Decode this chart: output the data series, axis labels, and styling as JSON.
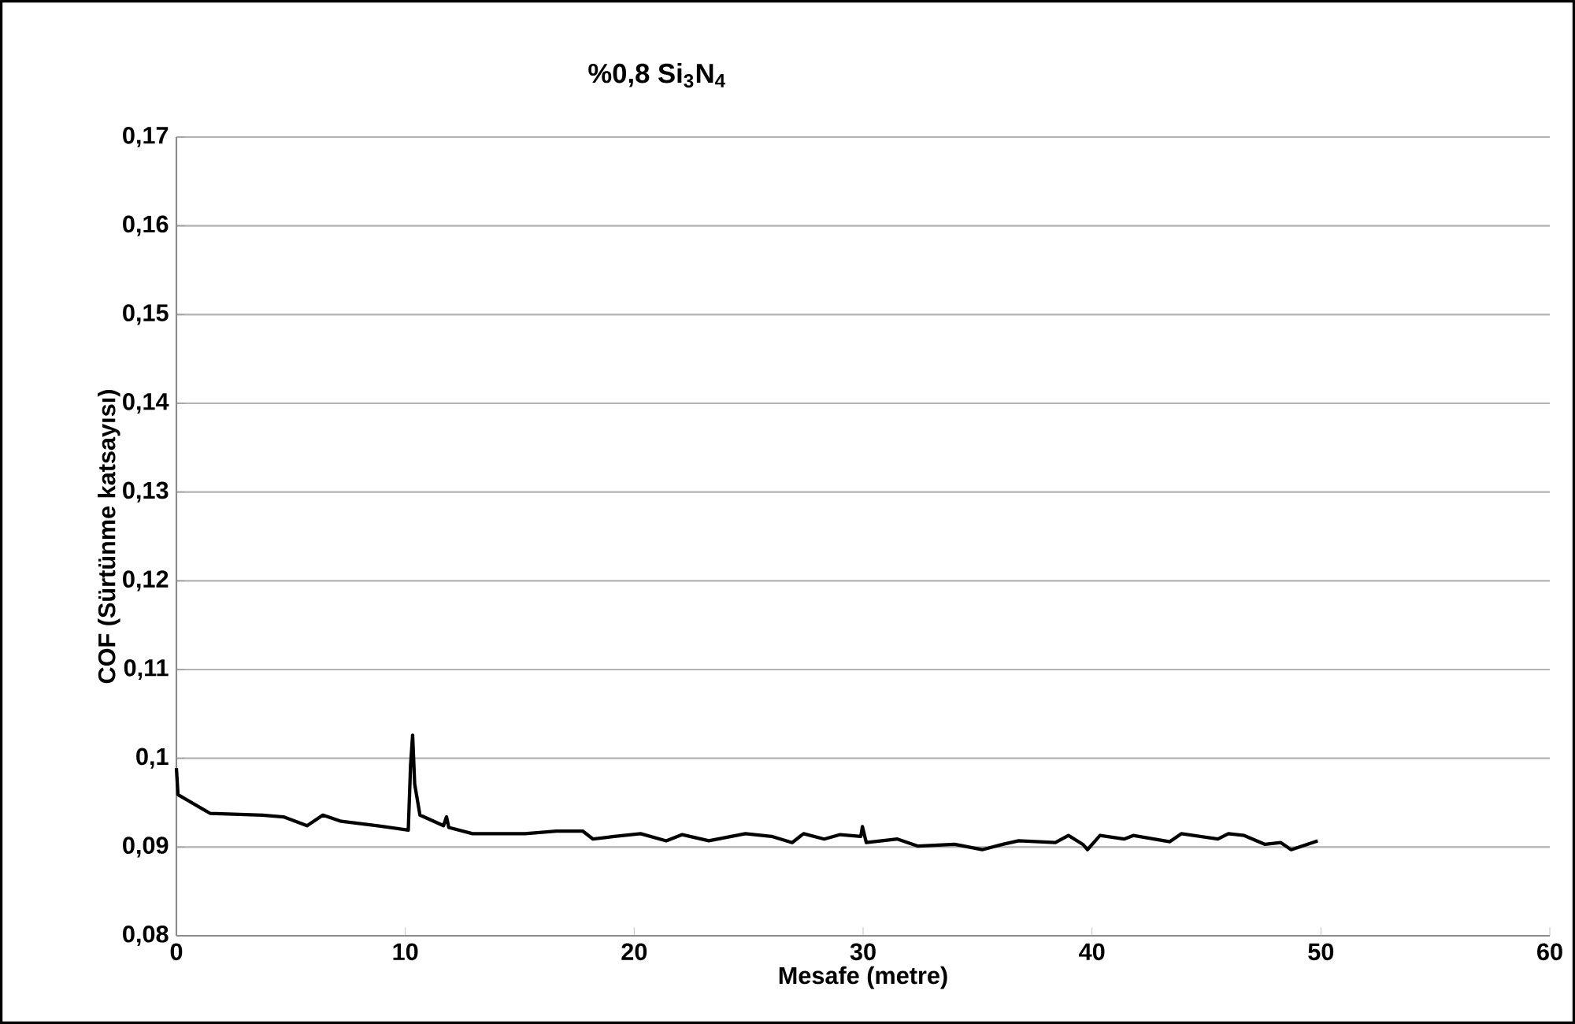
{
  "chart_data": {
    "type": "line",
    "title": "%0,8  Si$_{3}$N$_{4}$",
    "xlabel": "Mesafe (metre)",
    "ylabel": "COF (Sürtünme katsayısı)",
    "xlim": [
      0,
      60
    ],
    "ylim": [
      0.08,
      0.17
    ],
    "xticks": [
      0,
      10,
      20,
      30,
      40,
      50,
      60
    ],
    "yticks": [
      {
        "value": 0.08,
        "label": "0,08"
      },
      {
        "value": 0.09,
        "label": "0,09"
      },
      {
        "value": 0.1,
        "label": "0,1"
      },
      {
        "value": 0.11,
        "label": "0,11"
      },
      {
        "value": 0.12,
        "label": "0,12"
      },
      {
        "value": 0.13,
        "label": "0,13"
      },
      {
        "value": 0.14,
        "label": "0,14"
      },
      {
        "value": 0.15,
        "label": "0,15"
      },
      {
        "value": 0.16,
        "label": "0,16"
      },
      {
        "value": 0.17,
        "label": "0,17"
      }
    ],
    "grid": "y",
    "series": [
      {
        "color": "#000000",
        "x": [
          0,
          0.07,
          1.0,
          1.47,
          3.76,
          4.68,
          5.71,
          6.4,
          7.2,
          8.8,
          10.13,
          10.23,
          10.32,
          10.41,
          10.64,
          11.67,
          11.8,
          11.9,
          12.94,
          15.23,
          16.6,
          17.75,
          18.2,
          19.13,
          20.28,
          21.4,
          22.1,
          23.26,
          24.86,
          26.0,
          26.9,
          27.4,
          28.3,
          29.0,
          29.9,
          29.97,
          30.14,
          31.5,
          32.4,
          34.0,
          35.2,
          36.1,
          36.8,
          38.4,
          38.97,
          39.6,
          39.8,
          40.35,
          41.4,
          41.8,
          43.4,
          43.9,
          45.5,
          45.96,
          46.65,
          47.56,
          48.25,
          48.7,
          49.4,
          49.86
        ],
        "values": [
          0.0989,
          0.0959,
          0.0945,
          0.0938,
          0.0936,
          0.0934,
          0.0924,
          0.0936,
          0.0929,
          0.0924,
          0.0919,
          0.0992,
          0.1026,
          0.0971,
          0.0936,
          0.0924,
          0.0934,
          0.0922,
          0.0915,
          0.0915,
          0.0918,
          0.0918,
          0.0909,
          0.0912,
          0.0915,
          0.0907,
          0.0914,
          0.0907,
          0.0915,
          0.0912,
          0.0905,
          0.0915,
          0.0909,
          0.0914,
          0.0912,
          0.0923,
          0.0905,
          0.0909,
          0.0901,
          0.0903,
          0.0897,
          0.0903,
          0.0907,
          0.0905,
          0.0913,
          0.0903,
          0.0897,
          0.0913,
          0.0909,
          0.0913,
          0.0906,
          0.0915,
          0.0909,
          0.0915,
          0.0913,
          0.0903,
          0.0905,
          0.0897,
          0.0903,
          0.0907
        ]
      }
    ]
  }
}
